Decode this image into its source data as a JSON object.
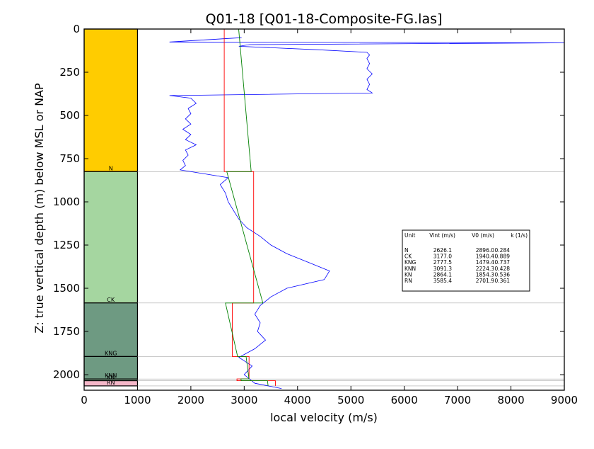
{
  "chart_data": {
    "type": "line",
    "title": "Q01-18 [Q01-18-Composite-FG.las]",
    "xlabel": "local velocity (m/s)",
    "ylabel": "Z: true vertical depth (m) below MSL or NAP",
    "xlim": [
      0,
      9000
    ],
    "ylim": [
      2090,
      0
    ],
    "y_inverted": true,
    "grid": false,
    "x_ticks": [
      0,
      1000,
      2000,
      3000,
      4000,
      5000,
      6000,
      7000,
      8000,
      9000
    ],
    "y_ticks": [
      0,
      250,
      500,
      750,
      1000,
      1250,
      1500,
      1750,
      2000
    ],
    "colors": {
      "well_log": "#0000ff",
      "interval_velocity": "#ff0000",
      "v0_k_trend": "#008000",
      "boundary": "#aaaaaa"
    },
    "units": [
      {
        "name": "N",
        "top": 0,
        "bottom": 825,
        "color": "#ffcc00",
        "vint": 2626.1,
        "v0": 2896.0,
        "k": 0.284
      },
      {
        "name": "CK",
        "top": 825,
        "bottom": 1585,
        "color": "#a5d6a0",
        "vint": 3177.0,
        "v0": 1940.4,
        "k": 0.889
      },
      {
        "name": "KNG",
        "top": 1585,
        "bottom": 1895,
        "color": "#6e9a82",
        "vint": 2777.5,
        "v0": 1479.4,
        "k": 0.737
      },
      {
        "name": "KNN",
        "top": 1895,
        "bottom": 2025,
        "color": "#6e9a82",
        "vint": 3091.3,
        "v0": 2224.3,
        "k": 0.428
      },
      {
        "name": "KN",
        "top": 2025,
        "bottom": 2035,
        "color": "#7fa88a",
        "vint": 2864.1,
        "v0": 1854.3,
        "k": 0.536
      },
      {
        "name": "RN",
        "top": 2035,
        "bottom": 2065,
        "color": "#f4b6c8",
        "vint": 3585.4,
        "v0": 2701.9,
        "k": 0.361
      }
    ],
    "table": {
      "headers": [
        "Unit",
        "Vint (m/s)",
        "V0 (m/s)",
        "k (1/s)"
      ],
      "rows": [
        [
          "N",
          "2626.1",
          "2896.0",
          "0.284"
        ],
        [
          "CK",
          "3177.0",
          "1940.4",
          "0.889"
        ],
        [
          "KNG",
          "2777.5",
          "1479.4",
          "0.737"
        ],
        [
          "KNN",
          "3091.3",
          "2224.3",
          "0.428"
        ],
        [
          "KN",
          "2864.1",
          "1854.3",
          "0.536"
        ],
        [
          "RN",
          "3585.4",
          "2701.9",
          "0.361"
        ]
      ]
    },
    "series": [
      {
        "style": "well_log",
        "points": [
          [
            2950,
            50
          ],
          [
            1600,
            75
          ],
          [
            9000,
            80
          ],
          [
            3100,
            90
          ],
          [
            2900,
            100
          ],
          [
            4400,
            120
          ],
          [
            5300,
            135
          ],
          [
            5350,
            150
          ],
          [
            5300,
            170
          ],
          [
            5350,
            200
          ],
          [
            5300,
            230
          ],
          [
            5400,
            260
          ],
          [
            5300,
            290
          ],
          [
            5350,
            320
          ],
          [
            5300,
            350
          ],
          [
            5400,
            370
          ],
          [
            1600,
            385
          ],
          [
            2000,
            400
          ],
          [
            2100,
            430
          ],
          [
            1950,
            460
          ],
          [
            2000,
            490
          ],
          [
            1900,
            520
          ],
          [
            2000,
            550
          ],
          [
            1850,
            580
          ],
          [
            2000,
            610
          ],
          [
            1900,
            640
          ],
          [
            2100,
            670
          ],
          [
            1900,
            700
          ],
          [
            1950,
            730
          ],
          [
            1850,
            760
          ],
          [
            1900,
            790
          ],
          [
            1800,
            815
          ],
          [
            2700,
            860
          ],
          [
            2550,
            900
          ],
          [
            2650,
            950
          ],
          [
            2700,
            1000
          ],
          [
            2800,
            1050
          ],
          [
            2900,
            1100
          ],
          [
            3050,
            1150
          ],
          [
            3300,
            1200
          ],
          [
            3500,
            1250
          ],
          [
            3800,
            1300
          ],
          [
            4200,
            1350
          ],
          [
            4600,
            1400
          ],
          [
            4500,
            1450
          ],
          [
            3800,
            1500
          ],
          [
            3500,
            1550
          ],
          [
            3300,
            1600
          ],
          [
            3200,
            1650
          ],
          [
            3300,
            1700
          ],
          [
            3250,
            1750
          ],
          [
            3400,
            1800
          ],
          [
            3200,
            1850
          ],
          [
            2900,
            1900
          ],
          [
            3150,
            1950
          ],
          [
            3000,
            2000
          ],
          [
            3200,
            2050
          ],
          [
            3700,
            2080
          ]
        ]
      },
      {
        "style": "interval_velocity",
        "points": [
          [
            2626.1,
            0
          ],
          [
            2626.1,
            825
          ],
          [
            3177.0,
            825
          ],
          [
            3177.0,
            1585
          ],
          [
            2777.5,
            1585
          ],
          [
            2777.5,
            1895
          ],
          [
            3091.3,
            1895
          ],
          [
            3091.3,
            2025
          ],
          [
            2864.1,
            2025
          ],
          [
            2864.1,
            2035
          ],
          [
            3585.4,
            2035
          ],
          [
            3585.4,
            2065
          ]
        ]
      },
      {
        "style": "v0_k_trend",
        "points": [
          [
            2896.0,
            0
          ],
          [
            3130.3,
            825
          ],
          [
            2673.8,
            825
          ],
          [
            3349.5,
            1585
          ],
          [
            2647.7,
            1585
          ],
          [
            2876.2,
            1895
          ],
          [
            3034.7,
            1895
          ],
          [
            3090.3,
            2025
          ],
          [
            2939.1,
            2025
          ],
          [
            2944.5,
            2035
          ],
          [
            3436.5,
            2035
          ],
          [
            3447.3,
            2065
          ]
        ]
      }
    ]
  }
}
